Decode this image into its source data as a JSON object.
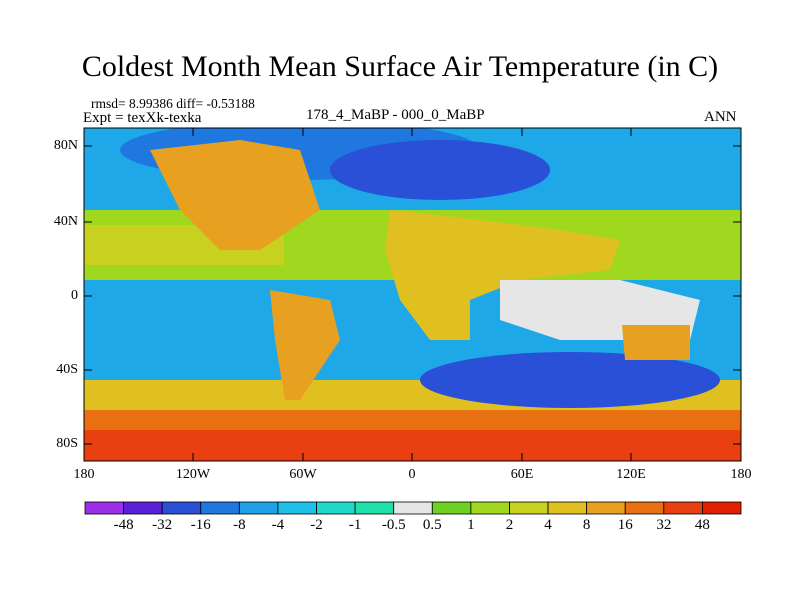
{
  "title": "Coldest Month Mean Surface Air Temperature (in C)",
  "stats_line": "rmsd= 8.99386 diff= -0.53188",
  "expt_line": "Expt = texXk-texka",
  "period_label": "178_4_MaBP - 000_0_MaBP",
  "season_label": "ANN",
  "lat_labels": [
    "80N",
    "40N",
    "0",
    "40S",
    "80S"
  ],
  "lon_labels": [
    "180",
    "120W",
    "60W",
    "0",
    "60E",
    "120E",
    "180"
  ],
  "colorbar": {
    "labels": [
      "-48",
      "-32",
      "-16",
      "-8",
      "-4",
      "-2",
      "-1",
      "-0.5",
      "0.5",
      "1",
      "2",
      "4",
      "8",
      "16",
      "32",
      "48"
    ],
    "colors": [
      "#9b30e8",
      "#5a1fd8",
      "#2a50d8",
      "#1e78e0",
      "#1ea0e8",
      "#1ec0e8",
      "#1ed8c8",
      "#1ee0a8",
      "#e6e6e6",
      "#6ed020",
      "#a0d820",
      "#c8d020",
      "#e0c020",
      "#e8a020",
      "#e87010",
      "#e84010",
      "#e02000"
    ]
  }
}
